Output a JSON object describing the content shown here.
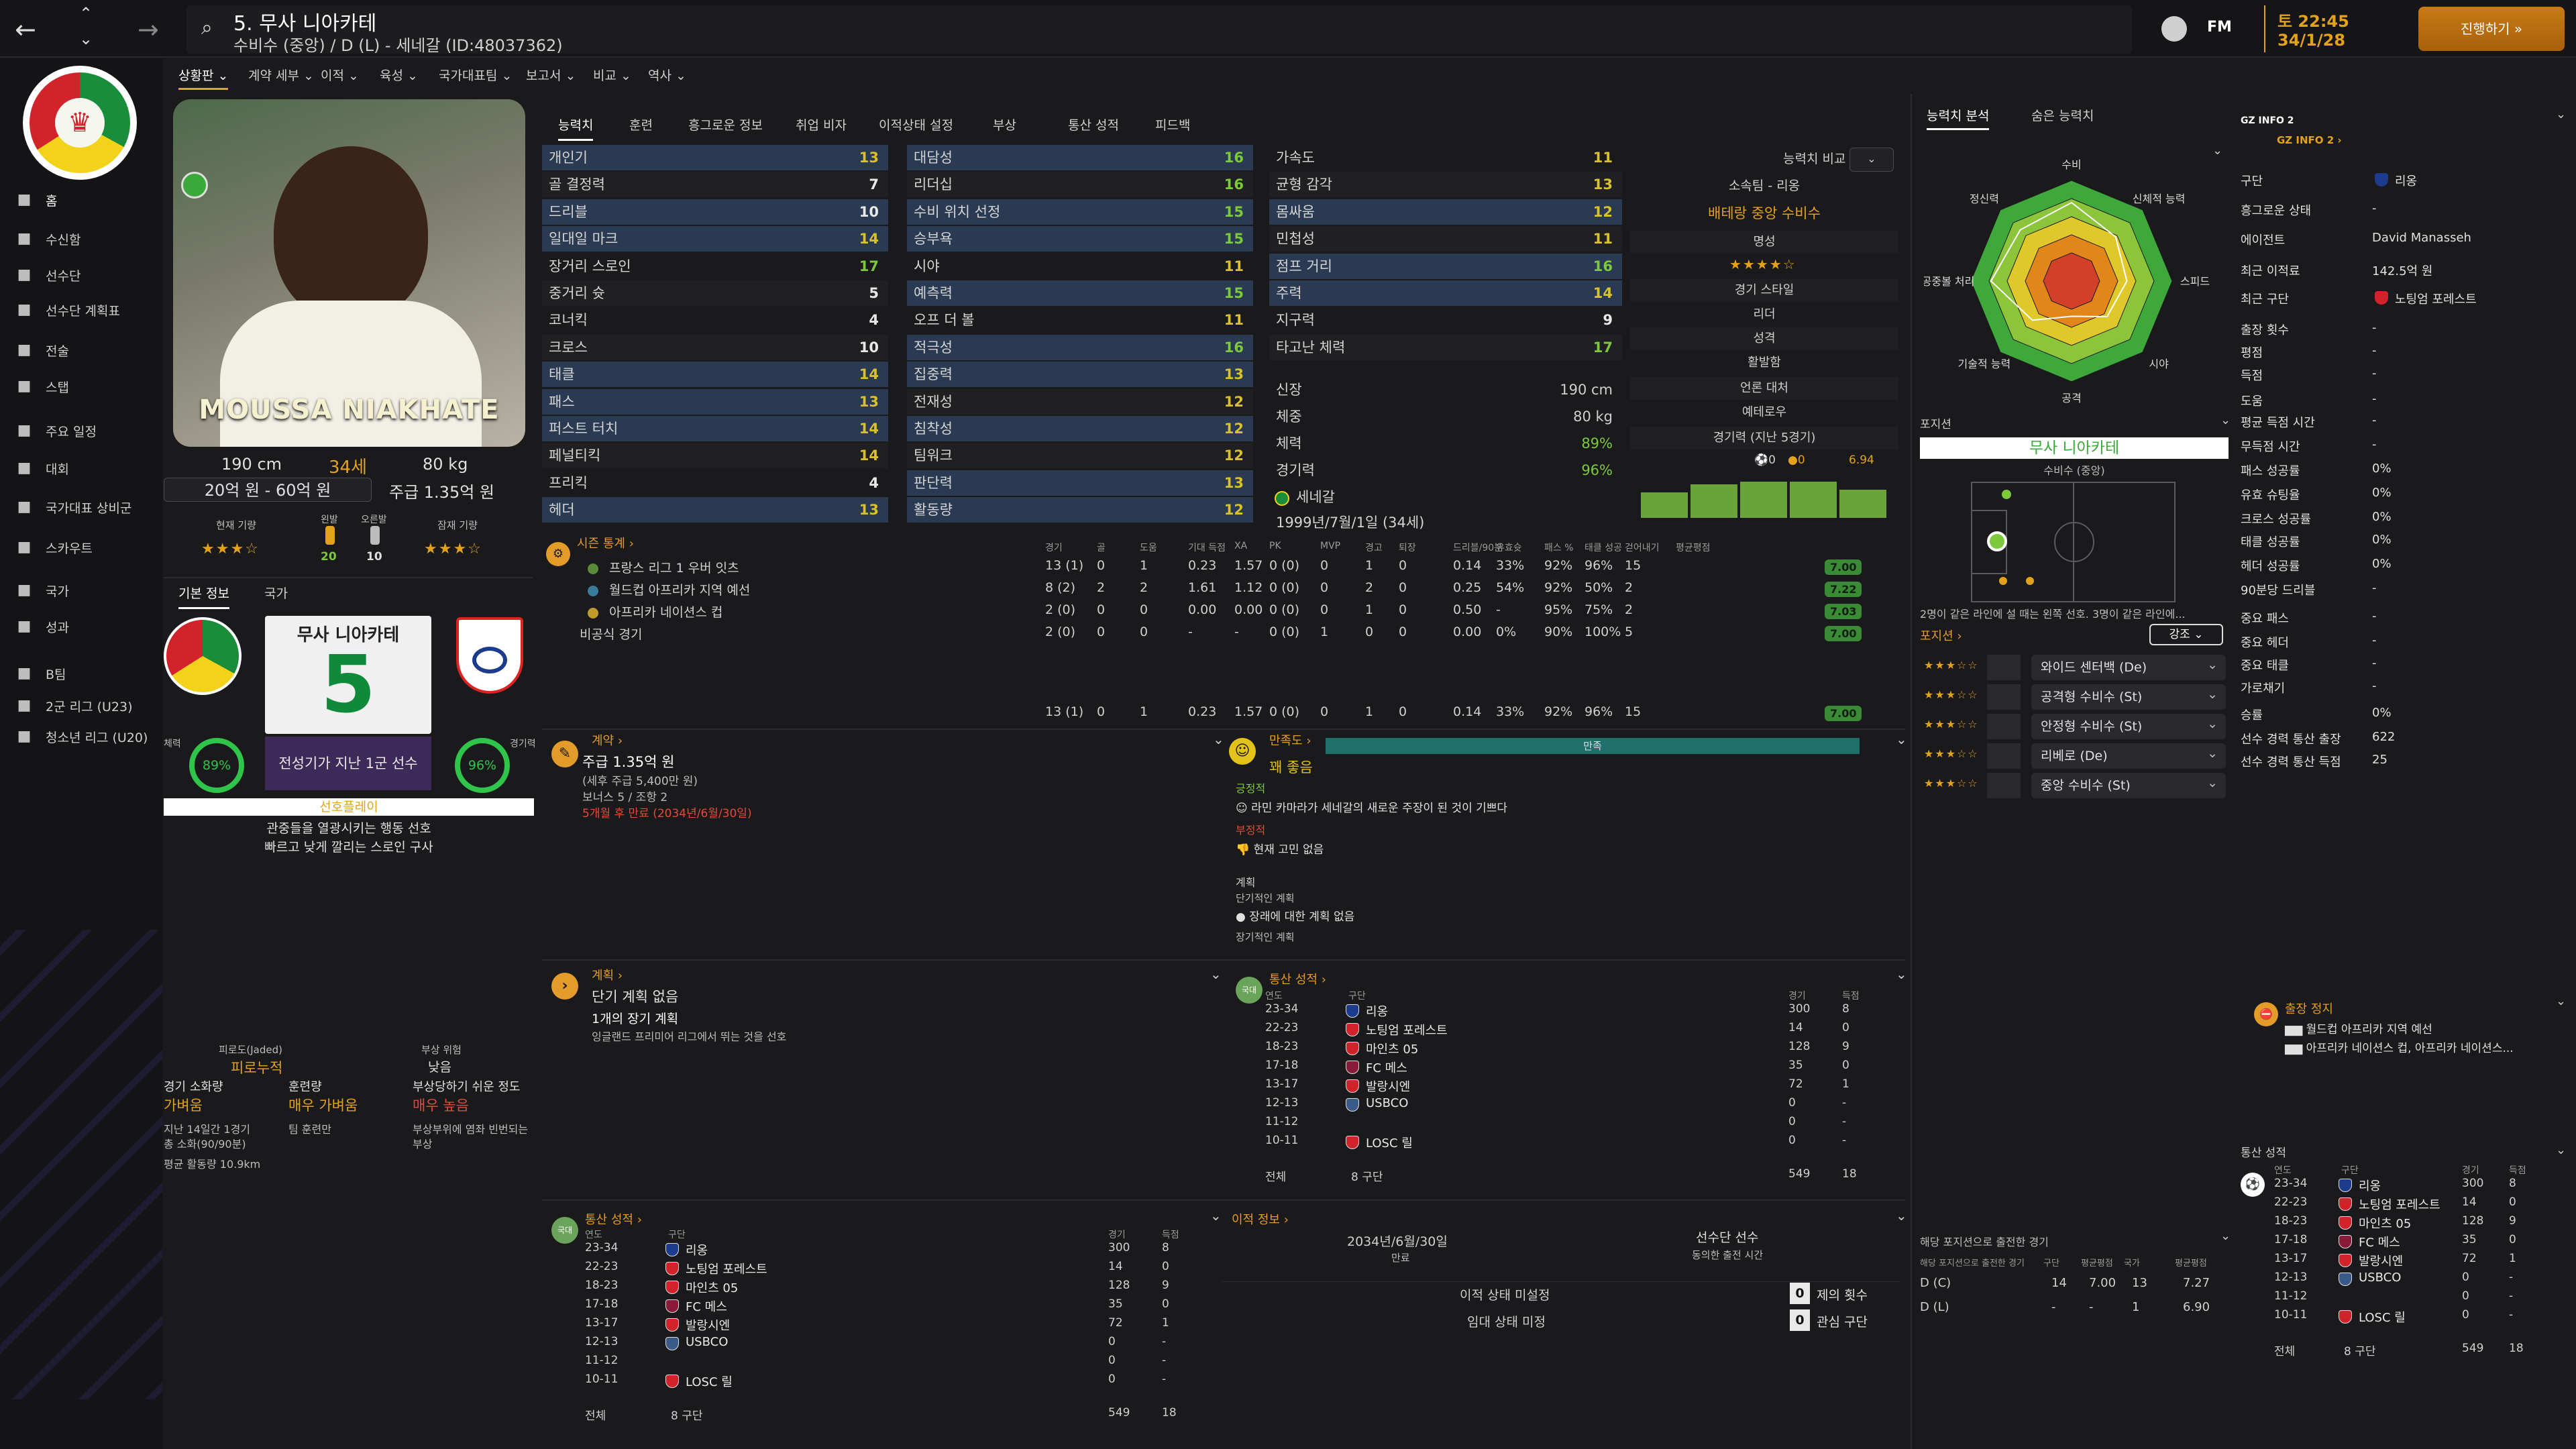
{
  "header": {
    "player_title": "5. 무사 니아카테",
    "subtitle": "수비수 (중앙) / D (L) - 세네갈 (ID:48037362)",
    "game_time": "토 22:45",
    "game_date": "34/1/28",
    "continue_label": "진행하기",
    "fm_label": "FM"
  },
  "sidebar": {
    "items": [
      {
        "label": "홈",
        "icon": "home-icon"
      },
      {
        "label": "수신함",
        "icon": "inbox-icon"
      },
      {
        "label": "선수단",
        "icon": "shirt-icon"
      },
      {
        "label": "선수단 계획표",
        "icon": "planner-icon"
      },
      {
        "label": "전술",
        "icon": "tactics-icon"
      },
      {
        "label": "스탭",
        "icon": "staff-icon"
      },
      {
        "label": "주요 일정",
        "icon": "calendar-icon"
      },
      {
        "label": "대회",
        "icon": "trophy-icon"
      },
      {
        "label": "국가대표 상비군",
        "icon": "list-icon"
      },
      {
        "label": "스카우트",
        "icon": "search-icon"
      },
      {
        "label": "국가",
        "icon": "shield-icon"
      },
      {
        "label": "성과",
        "icon": "folder-icon"
      },
      {
        "label": "B팀",
        "icon": "team-icon"
      },
      {
        "label": "2군 리그 (U23)",
        "icon": "team-icon"
      },
      {
        "label": "청소년 리그 (U20)",
        "icon": "team-icon"
      }
    ]
  },
  "subnav": [
    "상황판",
    "계약 세부",
    "이적",
    "육성",
    "국가대표팀",
    "보고서",
    "비교",
    "역사"
  ],
  "profile": {
    "name_overlay": "MOUSSA NIAKHATE",
    "height": "190 cm",
    "age": "34세",
    "weight": "80 kg",
    "value": "20억 원 - 60억 원",
    "wage": "주급 1.35억 원",
    "current_ability_label": "현재 기량",
    "potential_label": "잠재 기량",
    "left_foot_label": "왼발",
    "left_foot_value": "20",
    "right_foot_label": "오른발",
    "right_foot_value": "10",
    "tabs": [
      "기본 정보",
      "국가"
    ],
    "shirt_name": "무사 니아카테",
    "shirt_number": "5",
    "role_label": "전성기가 지난 1군 선수",
    "condition_label": "체력",
    "condition_value": "89%",
    "sharpness_label": "경기력",
    "sharpness_value": "96%",
    "preferred_play_label": "선호플레이",
    "preferred_play_1": "관중들을 열광시키는 행동 선호",
    "preferred_play_2": "빠르고 낮게 깔리는 스로인 구사",
    "fatigue_label": "피로도(Jaded)",
    "fatigue_value": "피로누적",
    "injury_risk_label": "부상 위험",
    "injury_risk_value": "낮음",
    "match_load_label": "경기 소화량",
    "match_load_value": "가벼움",
    "training_label": "훈련량",
    "training_value": "매우 가벼움",
    "injury_prone_label": "부상당하기 쉬운 정도",
    "injury_prone_value": "매우 높음",
    "recent_games": "지난 14일간 1경기",
    "recent_minutes": "총 소화(90/90분)",
    "distance": "평균 활동량 10.9km",
    "team_training": "팀 훈련만",
    "frequent_injury": "부상부위에 염좌 빈번되는",
    "frequent_injury_2": "부상"
  },
  "attr_tabs": [
    "능력치",
    "훈련",
    "흥그로운 정보",
    "취업 비자",
    "이적상태 설정",
    "부상",
    "통산 성적",
    "피드백"
  ],
  "attributes": {
    "technical": [
      {
        "name": "개인기",
        "value": "13",
        "hl": true
      },
      {
        "name": "골 결정력",
        "value": "7",
        "hl": false
      },
      {
        "name": "드리블",
        "value": "10",
        "hl": true
      },
      {
        "name": "일대일 마크",
        "value": "14",
        "hl": true
      },
      {
        "name": "장거리 스로인",
        "value": "17",
        "hl": false
      },
      {
        "name": "중거리 슛",
        "value": "5",
        "hl": false
      },
      {
        "name": "코너킥",
        "value": "4",
        "hl": false
      },
      {
        "name": "크로스",
        "value": "10",
        "hl": false
      },
      {
        "name": "태클",
        "value": "14",
        "hl": true
      },
      {
        "name": "패스",
        "value": "13",
        "hl": true
      },
      {
        "name": "퍼스트 터치",
        "value": "14",
        "hl": true
      },
      {
        "name": "페널티킥",
        "value": "14",
        "hl": false
      },
      {
        "name": "프리킥",
        "value": "4",
        "hl": false
      },
      {
        "name": "헤더",
        "value": "13",
        "hl": true
      }
    ],
    "mental": [
      {
        "name": "대담성",
        "value": "16",
        "hl": true
      },
      {
        "name": "리더십",
        "value": "16",
        "hl": false
      },
      {
        "name": "수비 위치 선정",
        "value": "15",
        "hl": true
      },
      {
        "name": "승부욕",
        "value": "15",
        "hl": true
      },
      {
        "name": "시야",
        "value": "11",
        "hl": false
      },
      {
        "name": "예측력",
        "value": "15",
        "hl": true
      },
      {
        "name": "오프 더 볼",
        "value": "11",
        "hl": false
      },
      {
        "name": "적극성",
        "value": "16",
        "hl": true
      },
      {
        "name": "집중력",
        "value": "13",
        "hl": true
      },
      {
        "name": "전재성",
        "value": "12",
        "hl": false
      },
      {
        "name": "침착성",
        "value": "12",
        "hl": true
      },
      {
        "name": "팀워크",
        "value": "12",
        "hl": false
      },
      {
        "name": "판단력",
        "value": "13",
        "hl": true
      },
      {
        "name": "활동량",
        "value": "12",
        "hl": true
      }
    ],
    "physical": [
      {
        "name": "가속도",
        "value": "11",
        "hl": false
      },
      {
        "name": "균형 감각",
        "value": "13",
        "hl": false
      },
      {
        "name": "몸싸움",
        "value": "12",
        "hl": true
      },
      {
        "name": "민첩성",
        "value": "11",
        "hl": false
      },
      {
        "name": "점프 거리",
        "value": "16",
        "hl": true
      },
      {
        "name": "주력",
        "value": "14",
        "hl": true
      },
      {
        "name": "지구력",
        "value": "9",
        "hl": false
      },
      {
        "name": "타고난 체력",
        "value": "17",
        "hl": false
      }
    ],
    "info_rows": [
      {
        "name": "신장",
        "value": "190 cm"
      },
      {
        "name": "체중",
        "value": "80 kg"
      },
      {
        "name": "체력",
        "value": "89%"
      },
      {
        "name": "경기력",
        "value": "96%"
      }
    ],
    "nation": "세네갈",
    "birth": "1999년/7월/1일 (34세)"
  },
  "compare": {
    "label": "능력치 비교",
    "club_label": "소속팀 - 리옹",
    "role": "배테랑 중앙 수비수",
    "reputation_label": "명성",
    "style_label": "경기 스타일",
    "style_value": "리더",
    "personality_label": "성격",
    "personality_value": "활발함",
    "media_label": "언론 대처",
    "media_value": "예테로우",
    "form_label": "경기력 (지난 5경기)",
    "form_goals": "0",
    "form_assists": "0",
    "form_rating": "6.94"
  },
  "season_stats": {
    "title": "시즌 통계",
    "headers": [
      "경기",
      "골",
      "도움",
      "기대 득점",
      "XA",
      "PK",
      "MVP",
      "경고",
      "퇴장",
      "드리블/90분",
      "유효슛",
      "패스 %",
      "태클 성공",
      "걷어내기",
      "평균평점"
    ],
    "rows": [
      {
        "comp": "프랑스 리그 1 우버 잇츠",
        "vals": [
          "13 (1)",
          "0",
          "1",
          "0.23",
          "1.57",
          "0 (0)",
          "0",
          "1",
          "0",
          "0.14",
          "33%",
          "92%",
          "96%",
          "15"
        ],
        "rating": "7.00"
      },
      {
        "comp": "월드컵 아프리카 지역 예선",
        "vals": [
          "8 (2)",
          "2",
          "2",
          "1.61",
          "1.12",
          "0 (0)",
          "0",
          "2",
          "0",
          "0.25",
          "54%",
          "92%",
          "50%",
          "2"
        ],
        "rating": "7.22"
      },
      {
        "comp": "아프리카 네이션스 컵",
        "vals": [
          "2 (0)",
          "0",
          "0",
          "0.00",
          "0.00",
          "0 (0)",
          "0",
          "1",
          "0",
          "0.50",
          "-",
          "95%",
          "75%",
          "2"
        ],
        "rating": "7.03"
      },
      {
        "comp": "비공식 경기",
        "vals": [
          "2 (0)",
          "0",
          "0",
          "-",
          "-",
          "0 (0)",
          "1",
          "0",
          "0",
          "0.00",
          "0%",
          "90%",
          "100%",
          "5"
        ],
        "rating": "7.00"
      }
    ],
    "total": [
      "13 (1)",
      "0",
      "1",
      "0.23",
      "1.57",
      "0 (0)",
      "0",
      "1",
      "0",
      "0.14",
      "33%",
      "92%",
      "96%",
      "15"
    ],
    "total_rating": "7.00"
  },
  "contract": {
    "title": "계약",
    "wage": "주급 1.35억 원",
    "wage_sub": "(세후 주급 5,400만 원)",
    "bonus": "보너스 5 / 조항 2",
    "expiry": "5개월 후 만료 (2034년/6월/30일)"
  },
  "happiness": {
    "title": "만족도",
    "status": "만족",
    "level": "꽤 좋음",
    "positive_label": "긍정적",
    "positive_1": "라민 카마라가 세네갈의 새로운 주장이 된 것이 기쁘다",
    "negative_label": "부정적",
    "negative_1": "현재 고민 없음",
    "plan_label": "계획",
    "short_plan_label": "단기적인 계획",
    "short_plan_1": "장래에 대한 계획 없음",
    "long_plan_label": "장기적인 계획"
  },
  "plan": {
    "title": "계획",
    "short": "단기 계획 없음",
    "long": "1개의 장기 계획",
    "long_detail": "잉글랜드 프리미어 리그에서 뛰는 것을 선호"
  },
  "career_stats": {
    "title": "통산 성적",
    "headers": [
      "연도",
      "구단",
      "경기",
      "득점"
    ],
    "rows": [
      {
        "year": "23-34",
        "club": "리옹",
        "apps": "300",
        "goals": "8"
      },
      {
        "year": "22-23",
        "club": "노팅엄 포레스트",
        "apps": "14",
        "goals": "0"
      },
      {
        "year": "18-23",
        "club": "마인츠 05",
        "apps": "128",
        "goals": "9"
      },
      {
        "year": "17-18",
        "club": "FC 메스",
        "apps": "35",
        "goals": "0"
      },
      {
        "year": "13-17",
        "club": "발랑시엔",
        "apps": "72",
        "goals": "1"
      },
      {
        "year": "12-13",
        "club": "USBCO",
        "apps": "0",
        "goals": "-"
      },
      {
        "year": "11-12",
        "club": "",
        "apps": "0",
        "goals": "-"
      },
      {
        "year": "10-11",
        "club": "LOSC 릴",
        "apps": "0",
        "goals": "-"
      }
    ],
    "total_label": "전체",
    "total_clubs": "8 구단",
    "total_apps": "549",
    "total_goals": "18"
  },
  "transfer": {
    "title": "이적 정보",
    "contract_end": "2034년/6월/30일",
    "contract_end_label": "만료",
    "squad_status": "선수단 선수",
    "squad_status_sub": "동의한 출전 시간",
    "transfer_status": "이적 상태 미설정",
    "loan_status": "임대 상태 미정",
    "offers_count": "0",
    "offers_label": "제의 횟수",
    "interest_count": "0",
    "interest_label": "관심 구단"
  },
  "analysis": {
    "tabs": [
      "능력치 분석",
      "숨은 능력치"
    ],
    "labels": [
      "수비",
      "신체적 능력",
      "스피드",
      "시야",
      "공격",
      "기술적 능력",
      "공중볼 처리",
      "정신력"
    ],
    "values": [
      0.78,
      0.62,
      0.55,
      0.5,
      0.35,
      0.55,
      0.8,
      0.72
    ]
  },
  "positions": {
    "title": "포지션",
    "name": "무사 니아카테",
    "role": "수비수 (중앙)",
    "note": "2명이 같은 라인에 설 때는 왼쪽 선호. 3명이 같은 라인에...",
    "pos_label": "포지션",
    "sort_label": "강조",
    "roles": [
      {
        "stars": "★★★☆☆",
        "name": "와이드 센터백 (De)"
      },
      {
        "stars": "★★★☆☆",
        "name": "공격형 수비수 (St)"
      },
      {
        "stars": "★★★☆☆",
        "name": "안정형 수비수 (St)"
      },
      {
        "stars": "★★★☆☆",
        "name": "리베로 (De)"
      },
      {
        "stars": "★★★☆☆",
        "name": "중앙 수비수 (St)"
      }
    ],
    "played_title": "해당 포지션으로 출전한 경기",
    "played_headers": [
      "해당 포지션으로 출전한 경기",
      "구단",
      "평균평점",
      "국가",
      "평균평점"
    ],
    "played_rows": [
      {
        "pos": "D (C)",
        "a": "14",
        "b": "7.00",
        "c": "13",
        "d": "7.27"
      },
      {
        "pos": "D (L)",
        "a": "-",
        "b": "-",
        "c": "1",
        "d": "6.90"
      }
    ]
  },
  "gzinfo": {
    "title": "GZ INFO 2",
    "link": "GZ INFO 2",
    "rows": [
      {
        "k": "구단",
        "v": "리옹"
      },
      {
        "k": "흥그로운 상태",
        "v": "-"
      },
      {
        "k": "에이전트",
        "v": "David Manasseh"
      },
      {
        "k": "최근 이적료",
        "v": "142.5억 원"
      },
      {
        "k": "최근 구단",
        "v": "노팅엄 포레스트"
      },
      {
        "k": "출장 횟수",
        "v": "-"
      },
      {
        "k": "평점",
        "v": "-"
      },
      {
        "k": "득점",
        "v": "-"
      },
      {
        "k": "도움",
        "v": "-"
      },
      {
        "k": "평균 득점 시간",
        "v": "-"
      },
      {
        "k": "무득점 시간",
        "v": "-"
      },
      {
        "k": "패스 성공률",
        "v": "0%"
      },
      {
        "k": "유효 슈팅율",
        "v": "0%"
      },
      {
        "k": "크로스 성공률",
        "v": "0%"
      },
      {
        "k": "태클 성공률",
        "v": "0%"
      },
      {
        "k": "헤더 성공률",
        "v": "0%"
      },
      {
        "k": "90분당 드리블",
        "v": "-"
      },
      {
        "k": "중요 패스",
        "v": "-"
      },
      {
        "k": "중요 헤더",
        "v": "-"
      },
      {
        "k": "중요 태클",
        "v": "-"
      },
      {
        "k": "가로채기",
        "v": "-"
      },
      {
        "k": "승률",
        "v": "0%"
      },
      {
        "k": "선수 경력 통산 출장",
        "v": "622"
      },
      {
        "k": "선수 경력 통산 득점",
        "v": "25"
      }
    ],
    "suspension_title": "출장 정지",
    "suspension_1": "월드컵 아프리카 지역 예선",
    "suspension_2": "아프리카 네이션스 컵, 아프리카 네이션스..."
  },
  "colors": {
    "accent": "#e3a21a",
    "green": "#7cc93b",
    "panel": "#1e1e21"
  }
}
